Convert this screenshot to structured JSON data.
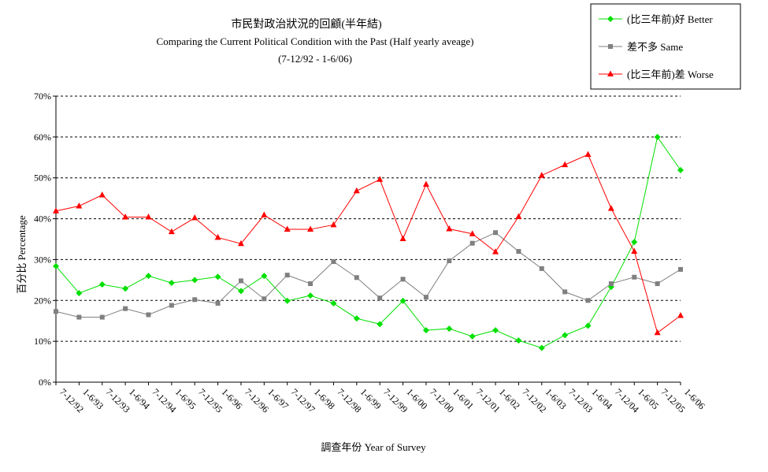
{
  "chart_data": {
    "type": "line",
    "title": "市民對政治狀況的回顧(半年結)",
    "subtitle": "Comparing the Current Political Condition with the Past  (Half yearly aveage)",
    "period": "(7-12/92 - 1-6/06)",
    "xlabel": "調查年份 Year of Survey",
    "ylabel": "百分比 Percentage",
    "ylim": [
      0,
      70
    ],
    "yticks": [
      "0%",
      "10%",
      "20%",
      "30%",
      "40%",
      "50%",
      "60%",
      "70%"
    ],
    "grid": true,
    "legend_position": "top-right",
    "categories": [
      "7-12/92",
      "1-6/93",
      "7-12/93",
      "1-6/94",
      "7-12/94",
      "1-6/95",
      "7-12/95",
      "1-6/96",
      "7-12/96",
      "1-6/97",
      "7-12/97",
      "1-6/98",
      "7-12/98",
      "1-6/99",
      "7-12/99",
      "1-6/00",
      "7-12/00",
      "1-6/01",
      "7-12/01",
      "1-6/02",
      "7-12/02",
      "1-6/03",
      "7-12/03",
      "1-6/04",
      "7-12/04",
      "1-6/05",
      "7-12/05",
      "1-6/06"
    ],
    "series": [
      {
        "name": "(比三年前)好 Better",
        "color": "#00e000",
        "marker": "diamond",
        "values": [
          28.4,
          21.8,
          23.9,
          22.9,
          26.0,
          24.3,
          25.0,
          25.8,
          22.3,
          26.0,
          19.9,
          21.2,
          19.3,
          15.6,
          14.2,
          19.9,
          12.7,
          13.1,
          11.2,
          12.7,
          10.2,
          8.4,
          11.5,
          13.8,
          23.3,
          34.3,
          60.0,
          51.9
        ]
      },
      {
        "name": "差不多 Same",
        "color": "#808080",
        "marker": "square",
        "values": [
          17.3,
          15.9,
          15.9,
          18.0,
          16.5,
          18.8,
          20.2,
          19.3,
          24.8,
          20.4,
          26.2,
          24.1,
          29.5,
          25.6,
          20.6,
          25.2,
          20.8,
          29.7,
          34.0,
          36.6,
          32.0,
          27.8,
          22.1,
          20.0,
          24.1,
          25.7,
          24.1,
          27.6
        ]
      },
      {
        "name": "(比三年前)差 Worse",
        "color": "#ff0000",
        "marker": "triangle",
        "values": [
          41.9,
          43.1,
          45.8,
          40.4,
          40.4,
          36.8,
          40.2,
          35.4,
          33.9,
          40.9,
          37.4,
          37.4,
          38.5,
          46.8,
          49.6,
          35.1,
          48.4,
          37.5,
          36.3,
          31.9,
          40.5,
          50.6,
          53.2,
          55.7,
          42.5,
          32.0,
          12.1,
          16.3
        ]
      }
    ]
  }
}
